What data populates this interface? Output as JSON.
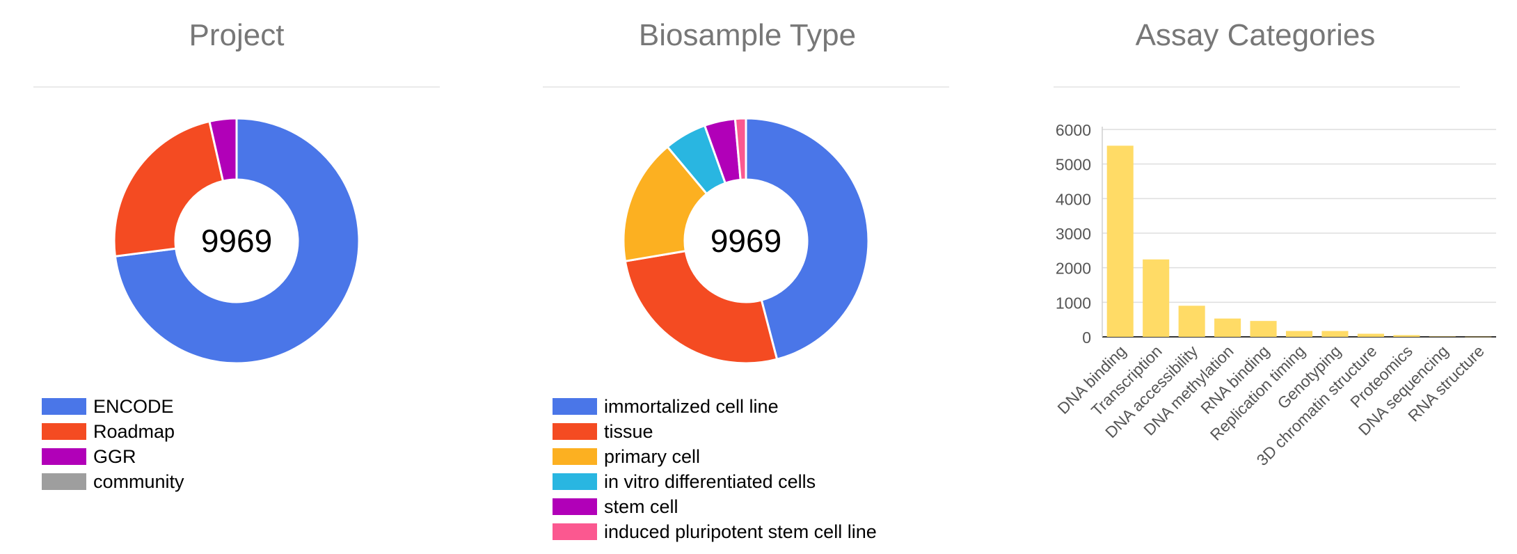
{
  "chart_data": [
    {
      "type": "pie",
      "title": "Project",
      "center_label": "9969",
      "labels": [
        "ENCODE",
        "Roadmap",
        "GGR",
        "community"
      ],
      "values": [
        7275,
        2339,
        355,
        0
      ],
      "colors": [
        "#4a76e8",
        "#f44b22",
        "#b100b8",
        "#9e9e9e"
      ]
    },
    {
      "type": "pie",
      "title": "Biosample Type",
      "center_label": "9969",
      "labels": [
        "immortalized cell line",
        "tissue",
        "primary cell",
        "in vitro differentiated cells",
        "stem cell",
        "induced pluripotent stem cell line"
      ],
      "values": [
        4545,
        2614,
        1642,
        554,
        402,
        140
      ],
      "colors": [
        "#4a76e8",
        "#f44b22",
        "#fcb021",
        "#29b6e1",
        "#b100b8",
        "#fb5890"
      ]
    },
    {
      "type": "bar",
      "title": "Assay Categories",
      "categories": [
        "DNA binding",
        "Transcription",
        "DNA accessibility",
        "DNA methylation",
        "RNA binding",
        "Replication timing",
        "Genotyping",
        "3D chromatin structure",
        "Proteomics",
        "DNA sequencing",
        "RNA structure"
      ],
      "values": [
        5530,
        2240,
        900,
        530,
        460,
        170,
        170,
        90,
        50,
        10,
        5
      ],
      "ylim": [
        0,
        6000
      ],
      "yticks": [
        "0",
        "1000",
        "2000",
        "3000",
        "4000",
        "5000",
        "6000"
      ],
      "bar_color": "#ffdb66",
      "grid": true
    }
  ]
}
